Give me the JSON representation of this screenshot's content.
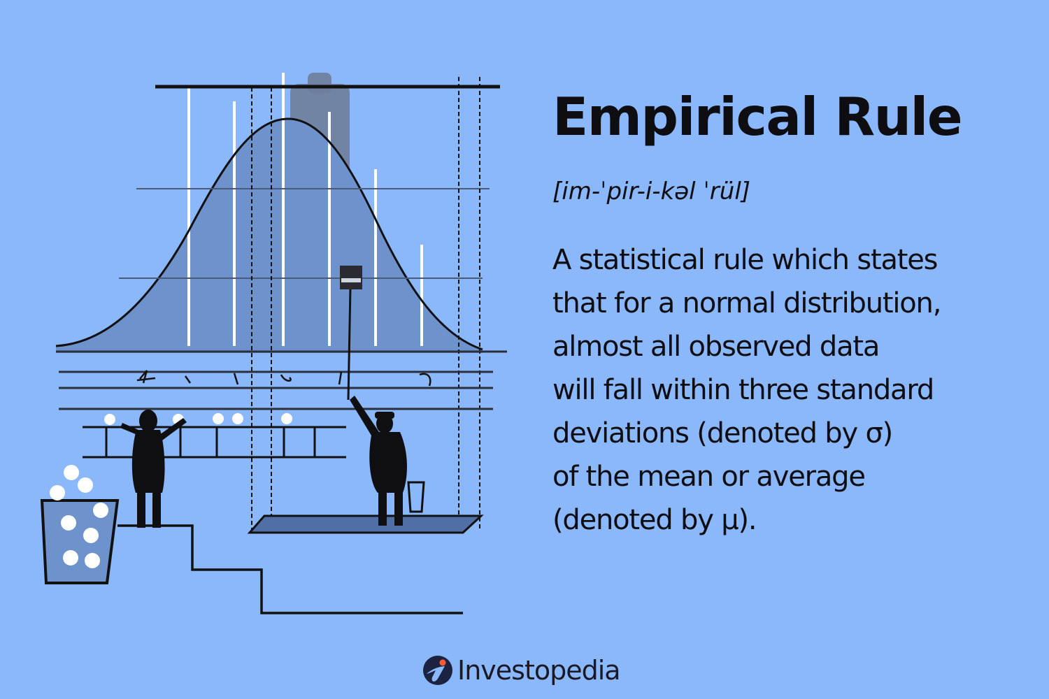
{
  "heading": {
    "title": "Empirical Rule",
    "pronunciation": "[im-ˈpir-i-kəl ˈrül]"
  },
  "definition": {
    "lines": [
      "A statistical rule which states",
      "that for a normal distribution,",
      "almost all observed data",
      "will fall within three standard",
      "deviations (denoted by σ)",
      "of the mean or average",
      "(denoted by μ)."
    ]
  },
  "brand": {
    "name": "Investopedia",
    "icon": "investopedia-logo-icon"
  },
  "illustration": {
    "icons": [
      "bell-curve-icon",
      "person-icon",
      "bucket-icon",
      "paint-roller-icon",
      "stairs-icon"
    ]
  },
  "colors": {
    "background": "#8ab8fb",
    "curve_fill": "#6d92cc",
    "text": "#0d0d12"
  }
}
